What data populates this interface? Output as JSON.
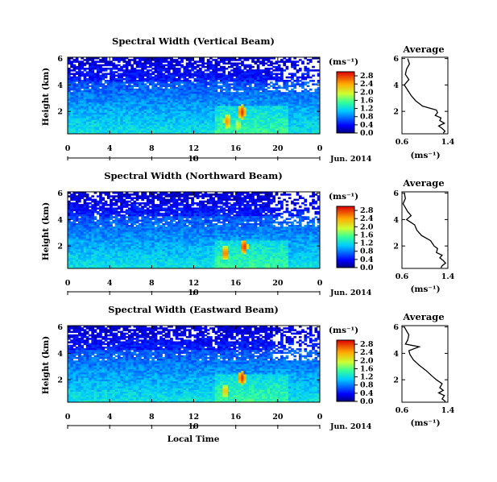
{
  "figure": {
    "x_axis_label": "Local Time",
    "date_label": "Jun. 2014",
    "day_label": "10",
    "colorbar_unit": "(ms⁻¹)",
    "average_unit": "(ms⁻¹)",
    "y_axis_label": "Height (km)"
  },
  "chart_data": [
    {
      "type": "heatmap",
      "title": "Spectral Width (Vertical Beam)",
      "xlabel": "Local Time",
      "ylabel": "Height (km)",
      "x_ticks": [
        "0",
        "4",
        "8",
        "12",
        "16",
        "20",
        "0"
      ],
      "y_ticks": [
        "2",
        "4",
        "6"
      ],
      "xlim": [
        0,
        24
      ],
      "ylim": [
        0.3,
        6.1
      ],
      "colorbar": {
        "unit": "(ms⁻¹)",
        "ticks": [
          "0.0",
          "0.4",
          "0.8",
          "1.2",
          "1.6",
          "2.0",
          "2.4",
          "2.8"
        ],
        "range": [
          0.0,
          3.0
        ]
      },
      "notable_features": [
        {
          "local_time": 15.2,
          "height_km": 1.3,
          "value": 2.5
        },
        {
          "local_time": 16.6,
          "height_km": 2.0,
          "value": 2.8
        },
        {
          "local_time": 16.2,
          "height_km": 1.0,
          "value": 2.0
        }
      ]
    },
    {
      "type": "line",
      "title": "Average",
      "xlabel": "(ms⁻¹)",
      "ylabel": "Height (km)",
      "x_ticks": [
        "0.6",
        "1.4"
      ],
      "y_ticks": [
        "2",
        "4",
        "6"
      ],
      "xlim": [
        0.6,
        1.4
      ],
      "ylim": [
        0.3,
        6.1
      ],
      "series": [
        {
          "x": [
            0.7,
            0.73,
            0.68,
            0.66,
            0.72,
            0.64,
            0.7,
            0.76,
            0.84,
            0.96,
            1.2,
            1.22,
            1.18,
            1.28,
            1.26,
            1.34,
            1.24,
            1.3,
            1.35,
            1.32
          ],
          "y": [
            6.0,
            5.6,
            5.2,
            4.8,
            4.4,
            4.0,
            3.6,
            3.2,
            2.8,
            2.4,
            2.1,
            1.9,
            1.7,
            1.5,
            1.3,
            1.1,
            0.9,
            0.7,
            0.5,
            0.35
          ]
        }
      ]
    },
    {
      "type": "heatmap",
      "title": "Spectral Width (Northward Beam)",
      "xlabel": "Local Time",
      "ylabel": "Height (km)",
      "x_ticks": [
        "0",
        "4",
        "8",
        "12",
        "16",
        "20",
        "0"
      ],
      "y_ticks": [
        "2",
        "4",
        "6"
      ],
      "xlim": [
        0,
        24
      ],
      "ylim": [
        0.3,
        6.1
      ],
      "colorbar": {
        "unit": "(ms⁻¹)",
        "ticks": [
          "0.0",
          "0.4",
          "0.8",
          "1.2",
          "1.6",
          "2.0",
          "2.4",
          "2.8"
        ],
        "range": [
          0.0,
          3.0
        ]
      },
      "notable_features": [
        {
          "local_time": 15.0,
          "height_km": 1.5,
          "value": 2.6
        },
        {
          "local_time": 16.8,
          "height_km": 2.0,
          "value": 2.8
        }
      ]
    },
    {
      "type": "line",
      "title": "Average",
      "xlabel": "(ms⁻¹)",
      "ylabel": "Height (km)",
      "x_ticks": [
        "0.6",
        "1.4"
      ],
      "y_ticks": [
        "2",
        "4",
        "6"
      ],
      "xlim": [
        0.6,
        1.4
      ],
      "ylim": [
        0.3,
        6.1
      ],
      "series": [
        {
          "x": [
            0.64,
            0.66,
            0.62,
            0.66,
            0.7,
            0.76,
            0.68,
            0.82,
            0.86,
            0.94,
            1.1,
            1.16,
            1.22,
            1.2,
            1.3,
            1.26,
            1.32,
            1.36,
            1.3,
            1.28
          ],
          "y": [
            6.0,
            5.6,
            5.2,
            4.9,
            4.6,
            4.3,
            4.0,
            3.6,
            3.2,
            2.8,
            2.4,
            2.0,
            1.8,
            1.5,
            1.3,
            1.1,
            0.9,
            0.7,
            0.5,
            0.35
          ]
        }
      ]
    },
    {
      "type": "heatmap",
      "title": "Spectral Width (Eastward Beam)",
      "xlabel": "Local Time",
      "ylabel": "Height (km)",
      "x_ticks": [
        "0",
        "4",
        "8",
        "12",
        "16",
        "20",
        "0"
      ],
      "y_ticks": [
        "2",
        "4",
        "6"
      ],
      "xlim": [
        0,
        24
      ],
      "ylim": [
        0.3,
        6.1
      ],
      "colorbar": {
        "unit": "(ms⁻¹)",
        "ticks": [
          "0.0",
          "0.4",
          "0.8",
          "1.2",
          "1.6",
          "2.0",
          "2.4",
          "2.8"
        ],
        "range": [
          0.0,
          3.0
        ]
      },
      "notable_features": [
        {
          "local_time": 16.6,
          "height_km": 2.2,
          "value": 2.8
        },
        {
          "local_time": 15.0,
          "height_km": 1.2,
          "value": 2.3
        }
      ]
    },
    {
      "type": "line",
      "title": "Average",
      "xlabel": "(ms⁻¹)",
      "ylabel": "Height (km)",
      "x_ticks": [
        "0.6",
        "1.4"
      ],
      "y_ticks": [
        "2",
        "4",
        "6"
      ],
      "xlim": [
        0.6,
        1.4
      ],
      "ylim": [
        0.3,
        6.1
      ],
      "series": [
        {
          "x": [
            0.64,
            0.68,
            0.72,
            0.7,
            0.66,
            0.9,
            0.72,
            0.74,
            0.8,
            0.9,
            1.02,
            1.12,
            1.2,
            1.3,
            1.26,
            1.32,
            1.24,
            1.34,
            1.3,
            1.36
          ],
          "y": [
            6.0,
            5.7,
            5.4,
            5.0,
            4.7,
            4.5,
            4.2,
            3.9,
            3.5,
            3.1,
            2.7,
            2.3,
            2.0,
            1.7,
            1.4,
            1.2,
            1.0,
            0.8,
            0.55,
            0.35
          ]
        }
      ]
    }
  ]
}
